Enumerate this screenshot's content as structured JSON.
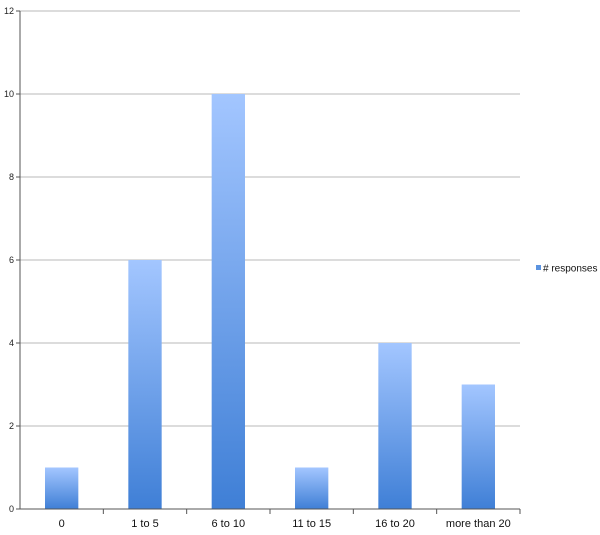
{
  "chart_data": {
    "type": "bar",
    "categories": [
      "0",
      "1 to 5",
      "6 to 10",
      "11 to 15",
      "16 to 20",
      "more than 20"
    ],
    "series": [
      {
        "name": "# responses",
        "values": [
          1,
          6,
          10,
          1,
          4,
          3
        ]
      }
    ],
    "ylim": [
      0,
      12
    ],
    "yticks": [
      0,
      2,
      4,
      6,
      8,
      10,
      12
    ],
    "title": "",
    "xlabel": "",
    "ylabel": "",
    "grid": true,
    "legend_position": "right",
    "colors": {
      "bar_top": "#a3c6ff",
      "bar_bottom": "#3f7fd6",
      "grid": "#b8b8b8",
      "axis": "#555555"
    }
  }
}
